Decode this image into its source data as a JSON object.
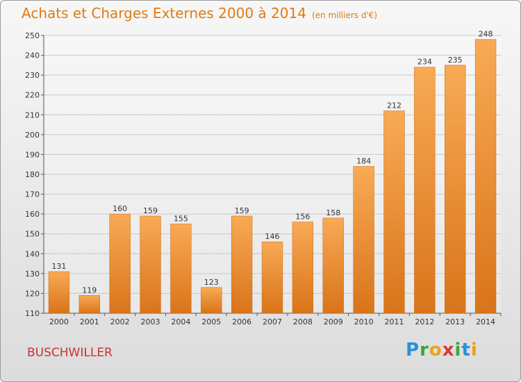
{
  "title": "Achats et Charges Externes 2000 à 2014",
  "unit": "(en milliers d'€)",
  "town": "BUSCHWILLER",
  "logo": [
    "P",
    "r",
    "o",
    "x",
    "i",
    "t",
    "i"
  ],
  "colors": {
    "bar_light": "#f8aa55",
    "bar_dark": "#d9741a",
    "title": "#e07a10",
    "town": "#c83232"
  },
  "chart_data": {
    "type": "bar",
    "categories": [
      "2000",
      "2001",
      "2002",
      "2003",
      "2004",
      "2005",
      "2006",
      "2007",
      "2008",
      "2009",
      "2010",
      "2011",
      "2012",
      "2013",
      "2014"
    ],
    "values": [
      131,
      119,
      160,
      159,
      155,
      123,
      159,
      146,
      156,
      158,
      184,
      212,
      234,
      235,
      248
    ],
    "ylim": [
      110,
      250
    ],
    "yticks": [
      110,
      120,
      130,
      140,
      150,
      160,
      170,
      180,
      190,
      200,
      210,
      220,
      230,
      240,
      250
    ],
    "grid": true
  }
}
